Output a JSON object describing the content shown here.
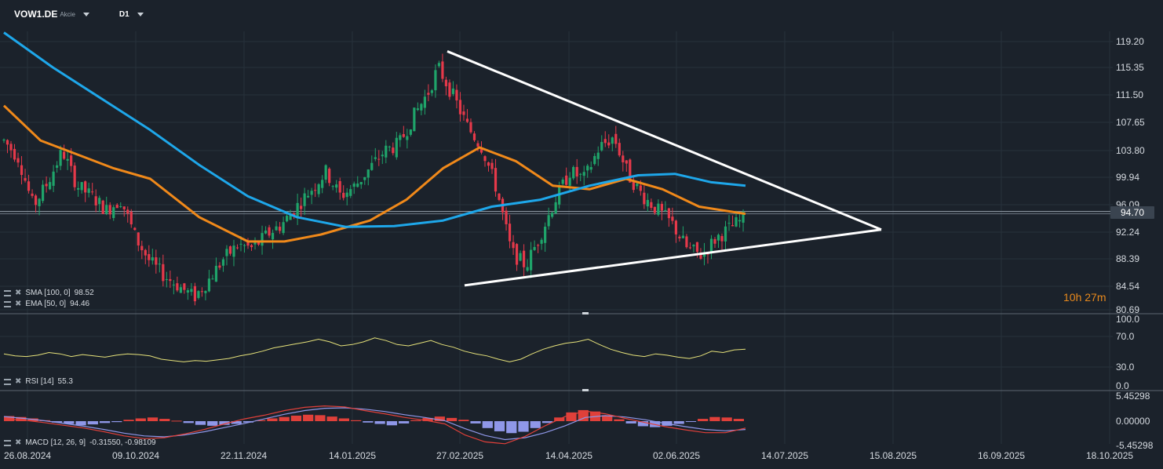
{
  "header": {
    "symbol": "VOW1.DE",
    "symbol_type": "Akcie",
    "timeframe": "D1"
  },
  "indicators": {
    "sma": {
      "label": "SMA [100, 0]",
      "value": "98.52",
      "color": "#1ea7ea"
    },
    "ema": {
      "label": "EMA [50, 0]",
      "value": "94.46",
      "color": "#f0891a"
    },
    "rsi": {
      "label": "RSI [14]",
      "value": "55.3",
      "color": "#e6e27a"
    },
    "macd": {
      "label": "MACD [12, 26, 9]",
      "value": "-0.31550,  -0.98109"
    }
  },
  "countdown": {
    "hours": "10",
    "h": "h",
    "minutes": "27",
    "m": "m"
  },
  "current_price": "94.70",
  "chart_data": [
    {
      "type": "candlestick",
      "title": "VOW1.DE D1",
      "y_ticks": [
        "119.20",
        "115.35",
        "111.50",
        "107.65",
        "103.80",
        "99.94",
        "96.09",
        "92.24",
        "88.39",
        "84.54",
        "80.69"
      ],
      "x_ticks": [
        "26.08.2024",
        "09.10.2024",
        "22.11.2024",
        "14.01.2025",
        "27.02.2025",
        "14.04.2025",
        "02.06.2025",
        "14.07.2025",
        "15.08.2025",
        "16.09.2025",
        "18.10.2025"
      ],
      "ylim": [
        80.69,
        121.0
      ],
      "series": [
        {
          "name": "SMA [100, 0]",
          "last": 98.52,
          "color": "#1ea7ea"
        },
        {
          "name": "EMA [50, 0]",
          "last": 94.46,
          "color": "#f0891a"
        }
      ],
      "price_path": [
        {
          "t": 0,
          "p": 105.0
        },
        {
          "t": 6,
          "p": 102.5
        },
        {
          "t": 12,
          "p": 95.5
        },
        {
          "t": 18,
          "p": 99.0
        },
        {
          "t": 24,
          "p": 103.5
        },
        {
          "t": 30,
          "p": 98.5
        },
        {
          "t": 36,
          "p": 97.0
        },
        {
          "t": 42,
          "p": 95.0
        },
        {
          "t": 48,
          "p": 96.5
        },
        {
          "t": 54,
          "p": 91.0
        },
        {
          "t": 60,
          "p": 87.5
        },
        {
          "t": 66,
          "p": 85.5
        },
        {
          "t": 72,
          "p": 84.0
        },
        {
          "t": 78,
          "p": 82.5
        },
        {
          "t": 84,
          "p": 85.0
        },
        {
          "t": 90,
          "p": 88.0
        },
        {
          "t": 96,
          "p": 90.0
        },
        {
          "t": 102,
          "p": 89.5
        },
        {
          "t": 108,
          "p": 91.5
        },
        {
          "t": 114,
          "p": 93.0
        },
        {
          "t": 120,
          "p": 95.5
        },
        {
          "t": 126,
          "p": 98.0
        },
        {
          "t": 132,
          "p": 100.5
        },
        {
          "t": 138,
          "p": 97.0
        },
        {
          "t": 144,
          "p": 98.5
        },
        {
          "t": 150,
          "p": 101.0
        },
        {
          "t": 156,
          "p": 103.5
        },
        {
          "t": 162,
          "p": 104.5
        },
        {
          "t": 168,
          "p": 108.5
        },
        {
          "t": 174,
          "p": 112.0
        },
        {
          "t": 178,
          "p": 115.5
        },
        {
          "t": 184,
          "p": 111.5
        },
        {
          "t": 190,
          "p": 107.0
        },
        {
          "t": 196,
          "p": 104.0
        },
        {
          "t": 202,
          "p": 98.0
        },
        {
          "t": 208,
          "p": 89.0
        },
        {
          "t": 214,
          "p": 87.0
        },
        {
          "t": 220,
          "p": 91.5
        },
        {
          "t": 226,
          "p": 96.5
        },
        {
          "t": 232,
          "p": 100.5
        },
        {
          "t": 238,
          "p": 99.5
        },
        {
          "t": 244,
          "p": 104.0
        },
        {
          "t": 250,
          "p": 105.5
        },
        {
          "t": 256,
          "p": 100.0
        },
        {
          "t": 262,
          "p": 97.0
        },
        {
          "t": 268,
          "p": 95.0
        },
        {
          "t": 274,
          "p": 93.0
        },
        {
          "t": 280,
          "p": 89.5
        },
        {
          "t": 286,
          "p": 88.5
        },
        {
          "t": 292,
          "p": 91.0
        },
        {
          "t": 298,
          "p": 92.5
        },
        {
          "t": 304,
          "p": 94.0
        }
      ],
      "sma_path": [
        {
          "t": 0,
          "p": 120.5
        },
        {
          "t": 20,
          "p": 115.5
        },
        {
          "t": 40,
          "p": 111.0
        },
        {
          "t": 60,
          "p": 106.5
        },
        {
          "t": 80,
          "p": 101.5
        },
        {
          "t": 100,
          "p": 97.0
        },
        {
          "t": 120,
          "p": 94.0
        },
        {
          "t": 140,
          "p": 92.6
        },
        {
          "t": 160,
          "p": 92.7
        },
        {
          "t": 180,
          "p": 93.5
        },
        {
          "t": 200,
          "p": 95.5
        },
        {
          "t": 220,
          "p": 96.5
        },
        {
          "t": 240,
          "p": 98.5
        },
        {
          "t": 260,
          "p": 100.0
        },
        {
          "t": 275,
          "p": 100.2
        },
        {
          "t": 290,
          "p": 99.0
        },
        {
          "t": 304,
          "p": 98.52
        }
      ],
      "ema_path": [
        {
          "t": 0,
          "p": 110.0
        },
        {
          "t": 15,
          "p": 105.0
        },
        {
          "t": 30,
          "p": 103.0
        },
        {
          "t": 45,
          "p": 101.0
        },
        {
          "t": 60,
          "p": 99.5
        },
        {
          "t": 80,
          "p": 94.0
        },
        {
          "t": 100,
          "p": 90.5
        },
        {
          "t": 115,
          "p": 90.5
        },
        {
          "t": 130,
          "p": 91.5
        },
        {
          "t": 150,
          "p": 93.5
        },
        {
          "t": 165,
          "p": 96.5
        },
        {
          "t": 180,
          "p": 101.0
        },
        {
          "t": 195,
          "p": 104.0
        },
        {
          "t": 210,
          "p": 102.0
        },
        {
          "t": 225,
          "p": 98.5
        },
        {
          "t": 240,
          "p": 98.0
        },
        {
          "t": 255,
          "p": 99.5
        },
        {
          "t": 270,
          "p": 98.0
        },
        {
          "t": 285,
          "p": 95.5
        },
        {
          "t": 304,
          "p": 94.46
        }
      ],
      "triangle": {
        "upper": [
          {
            "t": 178,
            "p": 117.8
          },
          {
            "t": 357,
            "p": 92.2
          }
        ],
        "lower": [
          {
            "t": 185,
            "p": 84.2
          },
          {
            "t": 357,
            "p": 92.2
          }
        ]
      }
    },
    {
      "type": "line",
      "title": "RSI [14]",
      "y_ticks": [
        "100.0",
        "70.0",
        "30.0",
        "0.0"
      ],
      "ylim": [
        0,
        100
      ],
      "series": [
        {
          "name": "RSI [14]",
          "color": "#e6e27a",
          "values": [
            48,
            45,
            44,
            46,
            50,
            48,
            44,
            47,
            45,
            43,
            46,
            48,
            47,
            45,
            40,
            38,
            36,
            38,
            37,
            39,
            41,
            45,
            48,
            52,
            57,
            60,
            63,
            66,
            70,
            66,
            60,
            62,
            66,
            72,
            68,
            62,
            60,
            64,
            68,
            62,
            58,
            52,
            48,
            45,
            40,
            36,
            40,
            48,
            55,
            60,
            64,
            66,
            70,
            62,
            55,
            50,
            46,
            44,
            48,
            46,
            43,
            41,
            45,
            52,
            50,
            54,
            55
          ]
        }
      ]
    },
    {
      "type": "bar",
      "title": "MACD [12, 26, 9]",
      "y_ticks": [
        "5.45298",
        "0.00000",
        "-5.45298"
      ],
      "ylim": [
        -5.45298,
        5.45298
      ],
      "series": [
        {
          "name": "MACD",
          "color": "#e0403a"
        },
        {
          "name": "Signal",
          "color": "#8f97e8"
        },
        {
          "name": "Histogram",
          "color": "#e0403a"
        }
      ],
      "histogram": [
        1.1,
        0.9,
        0.6,
        0.2,
        -0.3,
        -0.6,
        -0.9,
        -0.7,
        -0.4,
        -0.2,
        0.3,
        0.6,
        0.8,
        0.5,
        0.1,
        -0.4,
        -0.8,
        -1.0,
        -0.8,
        -0.6,
        -0.3,
        0.2,
        0.6,
        0.9,
        1.2,
        1.4,
        1.3,
        1.0,
        0.6,
        0.2,
        -0.3,
        -0.6,
        -0.9,
        -0.5,
        0.2,
        0.7,
        1.0,
        0.7,
        0.3,
        -0.5,
        -1.5,
        -2.2,
        -2.6,
        -2.3,
        -1.5,
        -0.4,
        0.8,
        1.9,
        2.4,
        2.1,
        1.3,
        0.4,
        -0.5,
        -1.1,
        -1.3,
        -1.0,
        -0.6,
        -0.1,
        0.5,
        0.9,
        0.8,
        0.5
      ],
      "macd_line": [
        0.5,
        0.2,
        -0.3,
        -0.9,
        -1.5,
        -2.3,
        -3.2,
        -3.8,
        -3.6,
        -2.8,
        -1.8,
        -0.6,
        0.5,
        1.3,
        2.3,
        3.0,
        3.3,
        3.1,
        2.3,
        1.6,
        0.8,
        0.2,
        -0.6,
        -3.0,
        -4.5,
        -4.9,
        -3.3,
        -1.0,
        1.0,
        2.2,
        1.6,
        0.6,
        -0.3,
        -1.2,
        -1.9,
        -2.5,
        -2.5,
        -1.5
      ],
      "signal_line": [
        1.0,
        0.6,
        0.1,
        -0.5,
        -1.1,
        -1.8,
        -2.6,
        -3.2,
        -3.4,
        -3.0,
        -2.3,
        -1.4,
        -0.5,
        0.5,
        1.5,
        2.3,
        2.8,
        2.9,
        2.6,
        2.1,
        1.4,
        0.8,
        0.1,
        -1.6,
        -3.1,
        -4.0,
        -3.6,
        -2.5,
        -1.0,
        0.8,
        1.2,
        0.9,
        0.3,
        -0.5,
        -1.2,
        -1.8,
        -2.1,
        -1.8
      ]
    }
  ]
}
